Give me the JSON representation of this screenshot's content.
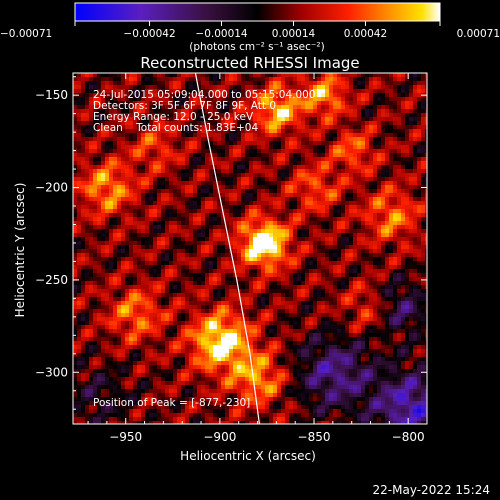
{
  "chart_data": {
    "type": "heatmap",
    "title": "Reconstructed RHESSI Image",
    "xlabel": "Heliocentric X (arcsec)",
    "ylabel": "Heliocentric Y (arcsec)",
    "xlim": [
      -978,
      -790
    ],
    "ylim": [
      -328,
      -138
    ],
    "x_ticks": [
      -950,
      -900,
      -850,
      -800
    ],
    "y_ticks": [
      -150,
      -200,
      -250,
      -300
    ],
    "x_tick_labels": [
      "−950",
      "−900",
      "−850",
      "−800"
    ],
    "y_tick_labels": [
      "−150",
      "−200",
      "−250",
      "−300"
    ],
    "colorbar": {
      "range": [
        -0.00071,
        0.00071
      ],
      "ticks": [
        -0.00071,
        -0.00042,
        -0.00014,
        0.00014,
        0.00042,
        0.00071
      ],
      "tick_labels": [
        "−0.00071",
        "−0.00042",
        "−0.00014",
        "0.00014",
        "0.00042",
        "0.00071"
      ],
      "unit_label": "(photons cm⁻² s⁻¹ asec⁻²)",
      "colormap": "blue-purple-black-red-orange-yellow-white"
    },
    "annotations": [
      "24-Jul-2015 05:09:04.000 to 05:15:04.000",
      "Detectors: 3F 5F 6F 7F 8F 9F, Att 0",
      "Energy Range: 12.0 - 25.0 keV",
      "Clean    Total counts: 1.83E+04"
    ],
    "peak_label": "Position of Peak = [-877,-230]",
    "peak": {
      "x": -877,
      "y": -230
    },
    "limb": [
      {
        "x": -913,
        "y": -138
      },
      {
        "x": -906,
        "y": -175
      },
      {
        "x": -898,
        "y": -215
      },
      {
        "x": -891,
        "y": -250
      },
      {
        "x": -884,
        "y": -290
      },
      {
        "x": -879,
        "y": -328
      }
    ],
    "sources": [
      {
        "x": -877,
        "y": -230,
        "amp": 0.00071,
        "sigma": 9
      },
      {
        "x": -900,
        "y": -283,
        "amp": 0.00062,
        "sigma": 11
      },
      {
        "x": -870,
        "y": -158,
        "amp": 0.00048,
        "sigma": 9
      },
      {
        "x": -845,
        "y": -150,
        "amp": 0.00042,
        "sigma": 8
      },
      {
        "x": -960,
        "y": -200,
        "amp": 0.0004,
        "sigma": 10
      },
      {
        "x": -945,
        "y": -268,
        "amp": 0.00034,
        "sigma": 10
      },
      {
        "x": -880,
        "y": -303,
        "amp": 0.0004,
        "sigma": 10
      },
      {
        "x": -810,
        "y": -215,
        "amp": 0.00034,
        "sigma": 10
      },
      {
        "x": -850,
        "y": -200,
        "amp": 0.00028,
        "sigma": 9
      },
      {
        "x": -935,
        "y": -178,
        "amp": 0.00024,
        "sigma": 9
      },
      {
        "x": -822,
        "y": -265,
        "amp": 0.00024,
        "sigma": 9
      },
      {
        "x": -830,
        "y": -180,
        "amp": 0.0003,
        "sigma": 8
      },
      {
        "x": -840,
        "y": -300,
        "amp": -0.00045,
        "sigma": 14
      },
      {
        "x": -800,
        "y": -318,
        "amp": -0.00055,
        "sigma": 14
      },
      {
        "x": -805,
        "y": -265,
        "amp": -0.00035,
        "sigma": 10
      },
      {
        "x": -965,
        "y": -312,
        "amp": -0.0002,
        "sigma": 12
      }
    ]
  },
  "footer": {
    "timestamp": "22-May-2022 15:24"
  }
}
